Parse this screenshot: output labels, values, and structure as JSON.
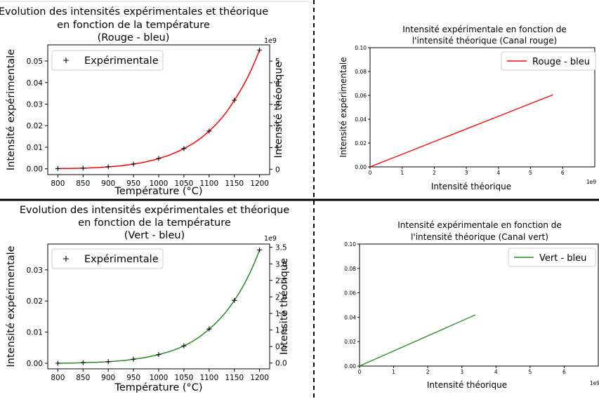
{
  "chart_data": [
    {
      "type": "scatter",
      "title_lines": [
        "Evolution des intensités expérimentales et théorique",
        "en fonction de la température",
        "(Rouge - bleu)"
      ],
      "xlabel": "Température (°C)",
      "ylabel": "Intensité expérimentale",
      "y2label": "Intensité théorique",
      "y2_multiplier": "1e9",
      "xlim": [
        780,
        1220
      ],
      "ylim": [
        -0.0027,
        0.0575
      ],
      "y2lim": [
        -0.25,
        5.75
      ],
      "xticks": [
        800,
        850,
        900,
        950,
        1000,
        1050,
        1100,
        1150,
        1200
      ],
      "yticks": [
        0.0,
        0.01,
        0.02,
        0.03,
        0.04,
        0.05
      ],
      "y2ticks": [
        0,
        1,
        2,
        3,
        4,
        5
      ],
      "legend": "Expérimentale",
      "legend_position": "upper-left",
      "line_color": "#ff0000",
      "marker_color": "#000000",
      "x": [
        800,
        850,
        900,
        950,
        1000,
        1050,
        1100,
        1150,
        1200
      ],
      "y_experimental": [
        0.0001,
        0.0003,
        0.0009,
        0.0022,
        0.0048,
        0.0094,
        0.0175,
        0.0318,
        0.0551
      ],
      "theoretical_curve_color": "#ff0000"
    },
    {
      "type": "line",
      "title_lines": [
        "Intensité expérimentale en fonction de",
        "l'intensité théorique (Canal rouge)"
      ],
      "xlabel": "Intensité théorique",
      "ylabel": "Intensité expérimentale",
      "x_multiplier": "1e9",
      "xlim": [
        0,
        7
      ],
      "ylim": [
        0,
        0.1
      ],
      "xticks": [
        0,
        1,
        2,
        3,
        4,
        5,
        6
      ],
      "yticks": [
        0.0,
        0.02,
        0.04,
        0.06,
        0.08,
        0.1
      ],
      "legend": "Rouge - bleu",
      "legend_position": "upper-right",
      "color": "#ff0000",
      "x": [
        0,
        5.7
      ],
      "y": [
        0,
        0.0605
      ]
    },
    {
      "type": "scatter",
      "title_lines": [
        "Evolution des intensités expérimentales et théorique",
        "en fonction de la température",
        "(Vert - bleu)"
      ],
      "xlabel": "Température (°C)",
      "ylabel": "Intensité expérimentale",
      "y2label": "Intensité théorique",
      "y2_multiplier": "1e9",
      "xlim": [
        780,
        1220
      ],
      "ylim": [
        -0.0018,
        0.0383
      ],
      "y2lim": [
        -0.175,
        3.6
      ],
      "xticks": [
        800,
        850,
        900,
        950,
        1000,
        1050,
        1100,
        1150,
        1200
      ],
      "yticks": [
        0.0,
        0.01,
        0.02,
        0.03
      ],
      "y2ticks": [
        0.0,
        0.5,
        1.0,
        1.5,
        2.0,
        2.5,
        3.0,
        3.5
      ],
      "legend": "Expérimentale",
      "legend_position": "upper-left",
      "line_color": "#228b22",
      "marker_color": "#000000",
      "x": [
        800,
        850,
        900,
        950,
        1000,
        1050,
        1100,
        1150,
        1200
      ],
      "y_experimental": [
        0.0,
        0.0002,
        0.0005,
        0.0013,
        0.0028,
        0.0056,
        0.011,
        0.0202,
        0.0364
      ],
      "theoretical_curve_color": "#228b22"
    },
    {
      "type": "line",
      "title_lines": [
        "Intensité expérimentale en fonction de",
        "l'intensité théorique (Canal vert)"
      ],
      "xlabel": "Intensité théorique",
      "ylabel": "",
      "x_multiplier": "1e9",
      "xlim": [
        0,
        7
      ],
      "ylim": [
        0,
        0.1
      ],
      "xticks": [
        0,
        1,
        2,
        3,
        4,
        5,
        6
      ],
      "yticks": [
        0.0,
        0.02,
        0.04,
        0.06,
        0.08,
        0.1
      ],
      "legend": "Vert - bleu",
      "legend_position": "upper-right",
      "color": "#228b22",
      "x": [
        0,
        3.4
      ],
      "y": [
        0,
        0.042
      ]
    }
  ]
}
